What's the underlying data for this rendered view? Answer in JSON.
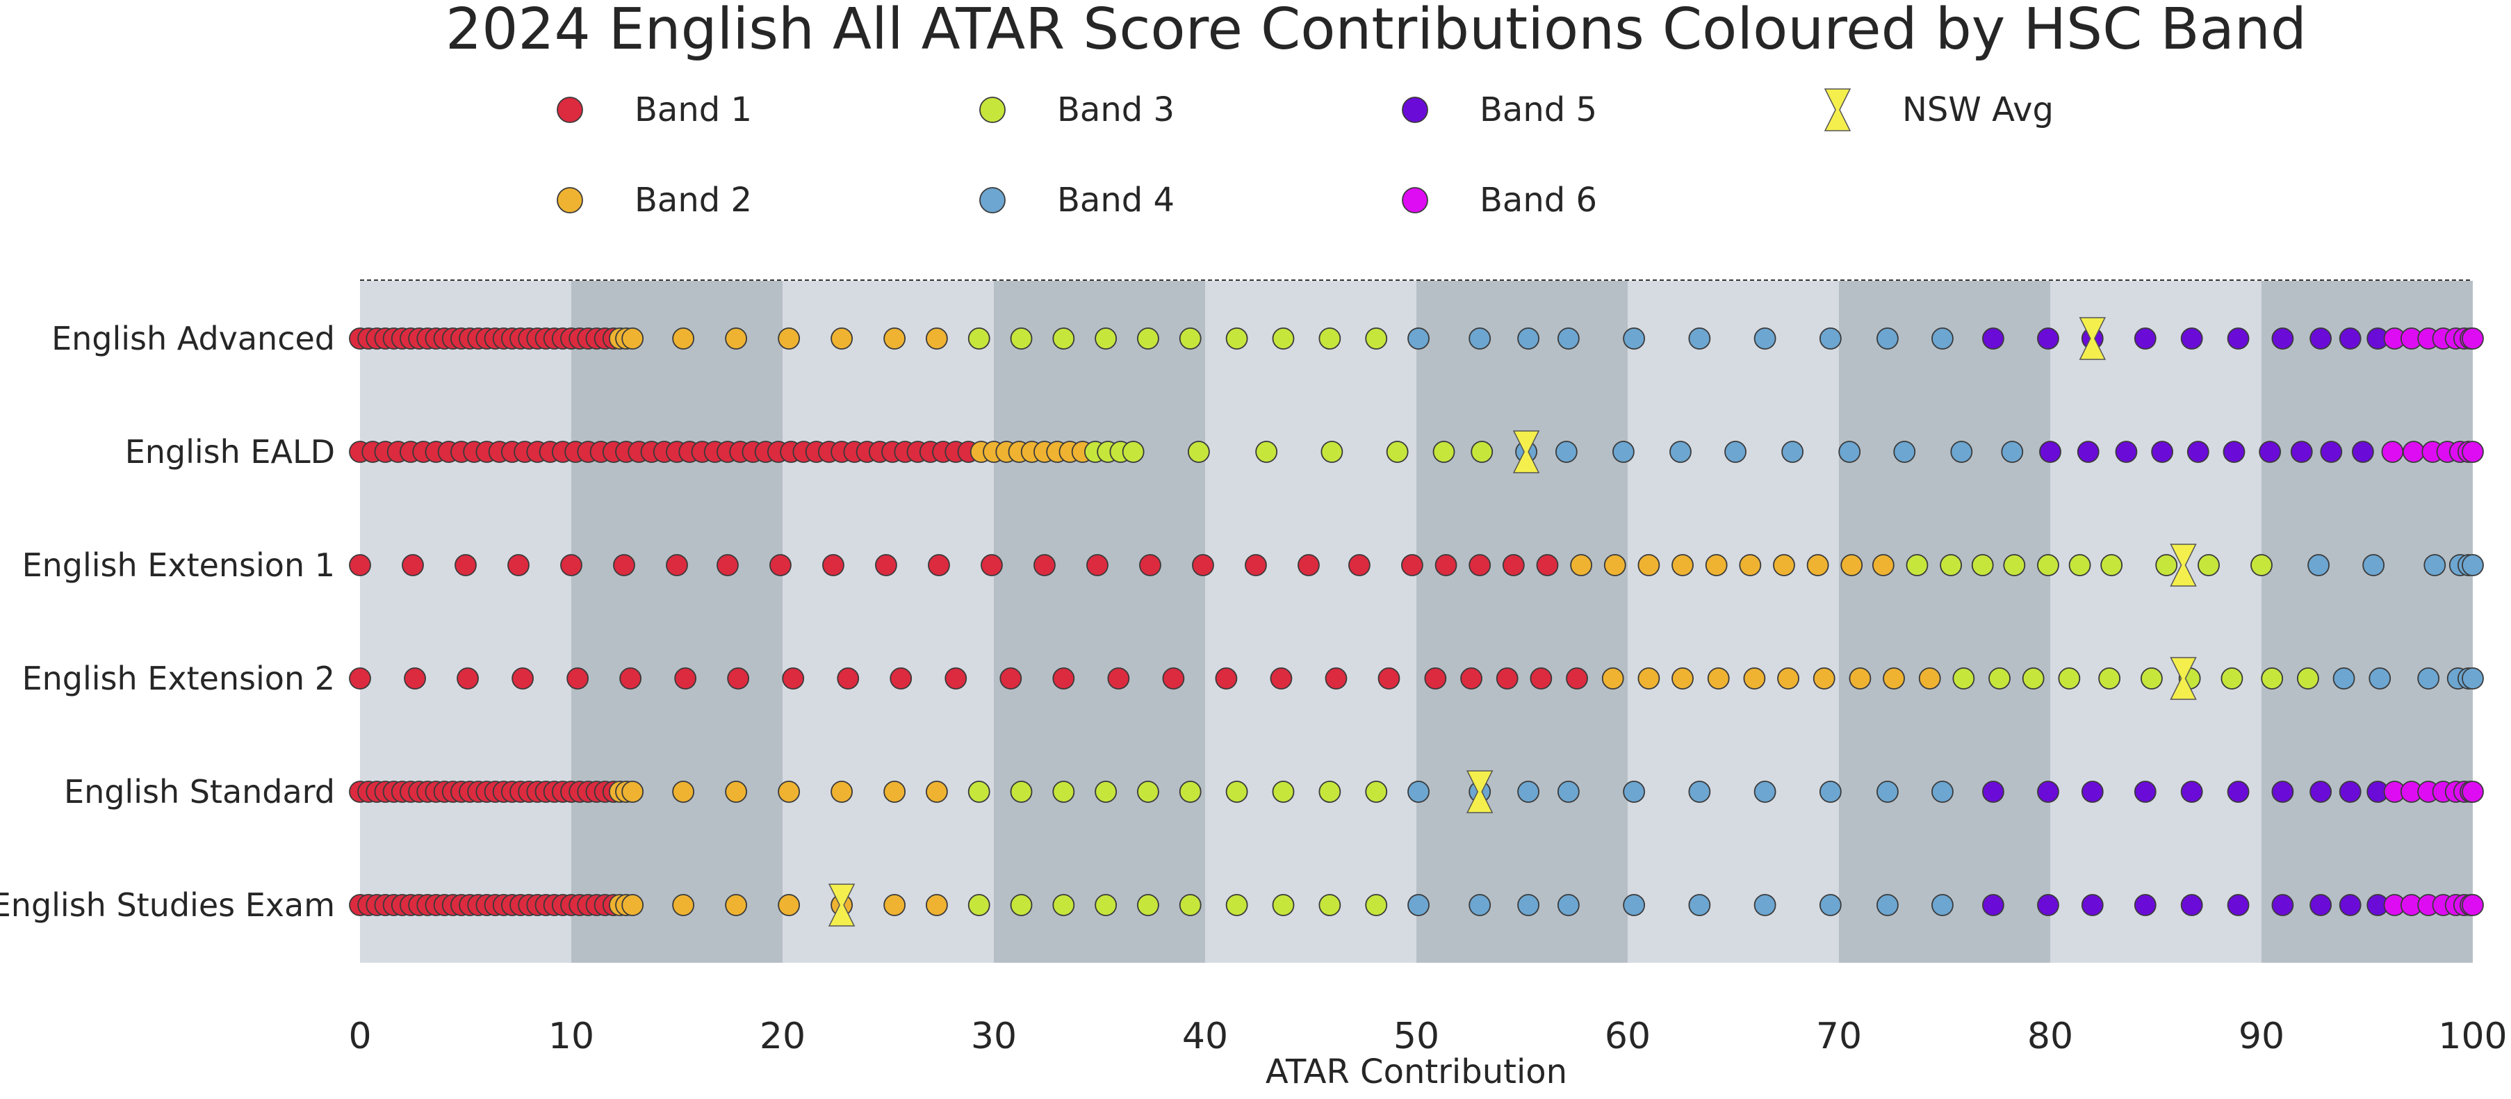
{
  "chart_data": {
    "type": "scatter",
    "title": "2024 English All ATAR Score Contributions Coloured by HSC Band",
    "xlabel": "ATAR Contribution",
    "ylabel": "",
    "xlim": [
      0,
      100
    ],
    "xticks": [
      0,
      10,
      20,
      30,
      40,
      50,
      60,
      70,
      80,
      90,
      100
    ],
    "grid": false,
    "legend_placement": "top",
    "band_shading": {
      "ranges": [
        [
          0,
          10
        ],
        [
          10,
          20
        ],
        [
          20,
          30
        ],
        [
          30,
          40
        ],
        [
          40,
          50
        ],
        [
          50,
          60
        ],
        [
          60,
          70
        ],
        [
          70,
          80
        ],
        [
          80,
          90
        ],
        [
          90,
          100
        ]
      ],
      "light_color": "#d6dae1",
      "dark_color": "#b6bfc6"
    },
    "legend": [
      {
        "label": "Band 1",
        "color": "#dc2a3f",
        "marker": "circle"
      },
      {
        "label": "Band 3",
        "color": "#c6e63c",
        "marker": "circle"
      },
      {
        "label": "Band 5",
        "color": "#6a0bd8",
        "marker": "circle"
      },
      {
        "label": "NSW Avg",
        "color": "#f4ef4c",
        "marker": "x"
      },
      {
        "label": "Band 2",
        "color": "#efb331",
        "marker": "circle"
      },
      {
        "label": "Band 4",
        "color": "#6ca6d1",
        "marker": "circle"
      },
      {
        "label": "Band 6",
        "color": "#de0cf3",
        "marker": "circle"
      }
    ],
    "series": [
      {
        "category": "English Advanced",
        "bands": {
          "1": [
            0,
            0.4,
            0.8,
            1.2,
            1.6,
            2.0,
            2.4,
            2.8,
            3.2,
            3.6,
            4.0,
            4.4,
            4.8,
            5.2,
            5.6,
            6.0,
            6.4,
            6.8,
            7.2,
            7.6,
            8.0,
            8.4,
            8.8,
            9.2,
            9.6,
            10.0,
            10.4,
            10.8,
            11.2,
            11.6,
            12.0
          ],
          "2": [
            12.3,
            12.6,
            12.9,
            15.3,
            17.8,
            20.3,
            22.8,
            25.3,
            27.3
          ],
          "3": [
            29.3,
            31.3,
            33.3,
            35.3,
            37.3,
            39.3,
            41.5,
            43.7,
            45.9,
            48.1
          ],
          "4": [
            50.1,
            53.0,
            55.3,
            57.2,
            60.3,
            63.4,
            66.5,
            69.6,
            72.3,
            74.9
          ],
          "5": [
            77.3,
            79.9,
            82.0,
            84.5,
            86.7,
            88.9,
            91.0,
            92.8,
            94.2,
            95.5
          ],
          "6": [
            96.3,
            97.1,
            97.9,
            98.6,
            99.2,
            99.6,
            99.9,
            100.0
          ]
        },
        "nsw_avg": 82.0
      },
      {
        "category": "English EALD",
        "bands": {
          "1": [
            0,
            0.6,
            1.2,
            1.8,
            2.4,
            3.0,
            3.6,
            4.2,
            4.8,
            5.4,
            6.0,
            6.6,
            7.2,
            7.8,
            8.4,
            9.0,
            9.6,
            10.2,
            10.8,
            11.4,
            12.0,
            12.6,
            13.2,
            13.8,
            14.4,
            15.0,
            15.6,
            16.2,
            16.8,
            17.4,
            18.0,
            18.6,
            19.2,
            19.8,
            20.4,
            21.0,
            21.6,
            22.2,
            22.8,
            23.4,
            24.0,
            24.6,
            25.2,
            25.8,
            26.4,
            27.0,
            27.6,
            28.2,
            28.8
          ],
          "2": [
            29.4,
            30.0,
            30.6,
            31.2,
            31.8,
            32.4,
            33.0,
            33.6,
            34.2
          ],
          "3": [
            34.8,
            35.4,
            36.0,
            36.6,
            39.7,
            42.9,
            46.0,
            49.1,
            51.3,
            53.1
          ],
          "4": [
            55.2,
            57.1,
            59.8,
            62.5,
            65.1,
            67.8,
            70.5,
            73.1,
            75.8,
            78.2
          ],
          "5": [
            80.0,
            81.8,
            83.6,
            85.3,
            87.0,
            88.7,
            90.4,
            91.9,
            93.3,
            94.8
          ],
          "6": [
            96.2,
            97.2,
            98.1,
            98.8,
            99.4,
            99.8,
            100.0
          ]
        },
        "nsw_avg": 55.2
      },
      {
        "category": "English Extension 1",
        "bands": {
          "1": [
            0,
            2.5,
            5.0,
            7.5,
            10.0,
            12.5,
            15.0,
            17.4,
            19.9,
            22.4,
            24.9,
            27.4,
            29.9,
            32.4,
            34.9,
            37.4,
            39.9,
            42.4,
            44.9,
            47.3,
            49.8,
            51.4,
            53.0,
            54.6,
            56.2
          ],
          "2": [
            57.8,
            59.4,
            61.0,
            62.6,
            64.2,
            65.8,
            67.4,
            69.0,
            70.6,
            72.1
          ],
          "3": [
            73.7,
            75.3,
            76.8,
            78.3,
            79.9,
            81.4,
            82.9,
            85.5,
            87.5,
            90.0
          ],
          "4": [
            92.7,
            95.3,
            98.2,
            99.4,
            99.8,
            100.0
          ],
          "5": [],
          "6": []
        },
        "nsw_avg": 86.3
      },
      {
        "category": "English Extension 2",
        "bands": {
          "1": [
            0,
            2.6,
            5.1,
            7.7,
            10.3,
            12.8,
            15.4,
            17.9,
            20.5,
            23.1,
            25.6,
            28.2,
            30.8,
            33.3,
            35.9,
            38.5,
            41.0,
            43.6,
            46.2,
            48.7,
            50.9,
            52.6,
            54.3,
            55.9,
            57.6
          ],
          "2": [
            59.3,
            61.0,
            62.6,
            64.3,
            66.0,
            67.6,
            69.3,
            71.0,
            72.6,
            74.3
          ],
          "3": [
            75.9,
            77.6,
            79.2,
            80.9,
            82.8,
            84.8,
            86.6,
            88.6,
            90.5,
            92.2
          ],
          "4": [
            93.9,
            95.6,
            97.9,
            99.3,
            99.8,
            100.0
          ],
          "5": [],
          "6": []
        },
        "nsw_avg": 86.3
      },
      {
        "category": "English Standard",
        "bands": {
          "1": [
            0,
            0.4,
            0.8,
            1.2,
            1.6,
            2.0,
            2.4,
            2.8,
            3.2,
            3.6,
            4.0,
            4.4,
            4.8,
            5.2,
            5.6,
            6.0,
            6.4,
            6.8,
            7.2,
            7.6,
            8.0,
            8.4,
            8.8,
            9.2,
            9.6,
            10.0,
            10.4,
            10.8,
            11.2,
            11.6,
            12.0
          ],
          "2": [
            12.3,
            12.6,
            12.9,
            15.3,
            17.8,
            20.3,
            22.8,
            25.3,
            27.3
          ],
          "3": [
            29.3,
            31.3,
            33.3,
            35.3,
            37.3,
            39.3,
            41.5,
            43.7,
            45.9,
            48.1
          ],
          "4": [
            50.1,
            53.0,
            55.3,
            57.2,
            60.3,
            63.4,
            66.5,
            69.6,
            72.3,
            74.9
          ],
          "5": [
            77.3,
            79.9,
            82.0,
            84.5,
            86.7,
            88.9,
            91.0,
            92.8,
            94.2,
            95.5
          ],
          "6": [
            96.3,
            97.1,
            97.9,
            98.6,
            99.2,
            99.6,
            99.9,
            100.0
          ]
        },
        "nsw_avg": 53.0
      },
      {
        "category": "English Studies Exam",
        "bands": {
          "1": [
            0,
            0.4,
            0.8,
            1.2,
            1.6,
            2.0,
            2.4,
            2.8,
            3.2,
            3.6,
            4.0,
            4.4,
            4.8,
            5.2,
            5.6,
            6.0,
            6.4,
            6.8,
            7.2,
            7.6,
            8.0,
            8.4,
            8.8,
            9.2,
            9.6,
            10.0,
            10.4,
            10.8,
            11.2,
            11.6,
            12.0
          ],
          "2": [
            12.3,
            12.6,
            12.9,
            15.3,
            17.8,
            20.3,
            22.8,
            25.3,
            27.3
          ],
          "3": [
            29.3,
            31.3,
            33.3,
            35.3,
            37.3,
            39.3,
            41.5,
            43.7,
            45.9,
            48.1
          ],
          "4": [
            50.1,
            53.0,
            55.3,
            57.2,
            60.3,
            63.4,
            66.5,
            69.6,
            72.3,
            74.9
          ],
          "5": [
            77.3,
            79.9,
            82.0,
            84.5,
            86.7,
            88.9,
            91.0,
            92.8,
            94.2,
            95.5
          ],
          "6": [
            96.3,
            97.1,
            97.9,
            98.6,
            99.2,
            99.6,
            99.9,
            100.0
          ]
        },
        "nsw_avg": 22.8
      }
    ]
  }
}
